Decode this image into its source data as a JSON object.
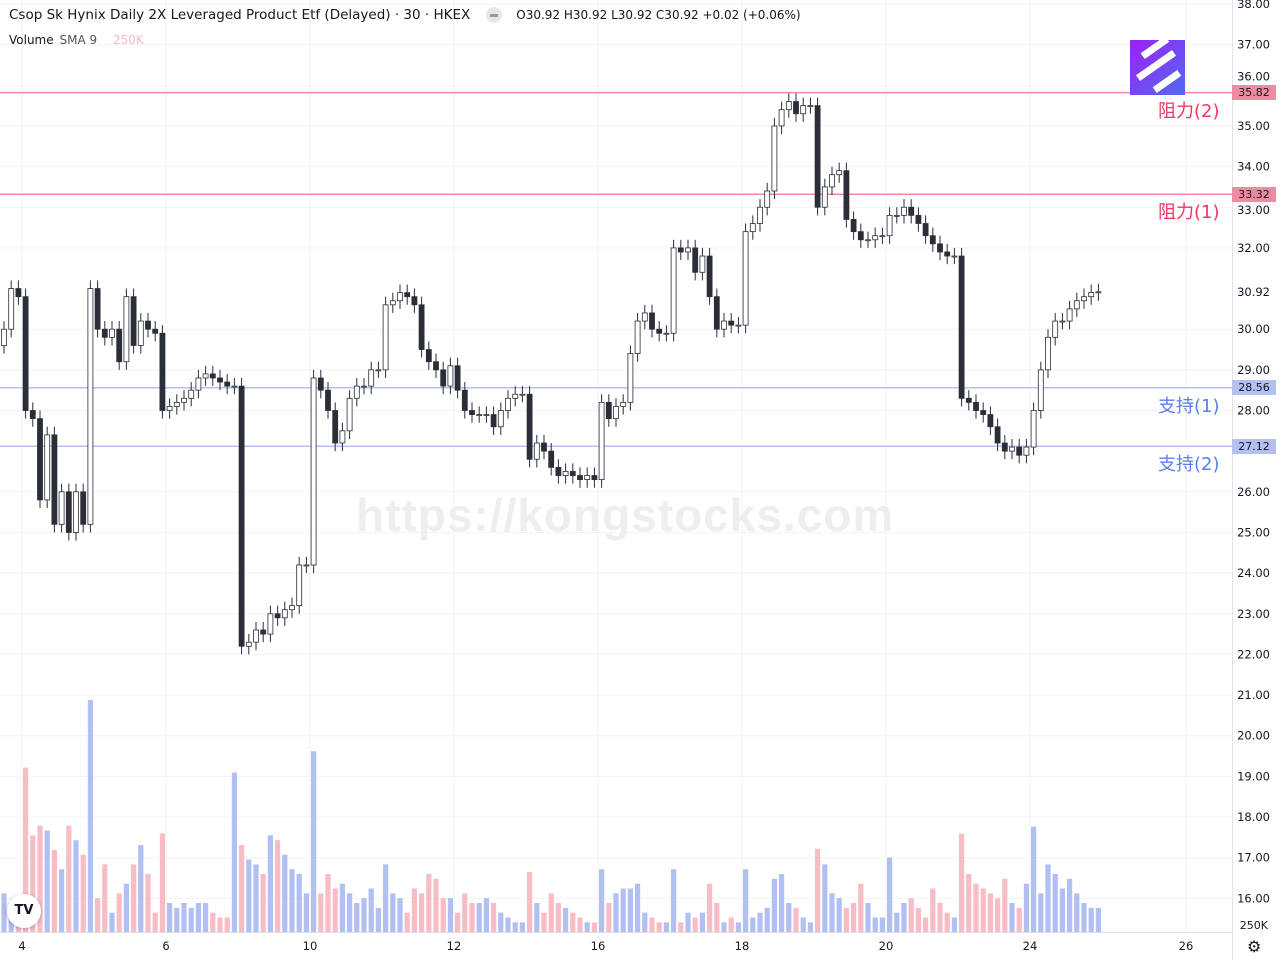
{
  "header": {
    "title": "Csop Sk Hynix Daily 2X Leveraged Product Etf (Delayed) · 30 · HKEX",
    "ohlc": "O30.92 H30.92 L30.92 C30.92 +0.02 (+0.06%)",
    "volume_label": "Volume",
    "volume_sma": "SMA 9",
    "volume_value": "250K"
  },
  "watermark": "https://kongstocks.com",
  "levels": [
    {
      "price": 35.82,
      "label": "35.82",
      "text": "阻力(2)",
      "color": "#f08aa0",
      "text_color": "#f23660"
    },
    {
      "price": 33.32,
      "label": "33.32",
      "text": "阻力(1)",
      "color": "#f08aa0",
      "text_color": "#f23660"
    },
    {
      "price": 28.56,
      "label": "28.56",
      "text": "支持(1)",
      "color": "#b4c0ee",
      "text_color": "#5b7ef0"
    },
    {
      "price": 27.12,
      "label": "27.12",
      "text": "支持(2)",
      "color": "#b4c0ee",
      "text_color": "#5b7ef0"
    }
  ],
  "tv_logo": "TV",
  "icons": {
    "settings": "gear-icon",
    "logo": "tradingview-logo"
  },
  "colors": {
    "up_volume": "#b2bff2",
    "down_volume": "#f7bcc4",
    "up_candle": "#ffffff",
    "down_candle": "#2a2e39",
    "last_price": "#e0e3eb"
  },
  "chart_data": {
    "type": "candlestick",
    "ylim": [
      15.5,
      38
    ],
    "y_ticks": [
      "38.00",
      "37.00",
      "36.00",
      "35.00",
      "34.00",
      "33.00",
      "32.00",
      "30.00",
      "29.00",
      "28.00",
      "26.00",
      "25.00",
      "24.00",
      "23.00",
      "22.00",
      "21.00",
      "20.00",
      "19.00",
      "18.00",
      "17.00",
      "16.00"
    ],
    "last_price": "30.92",
    "volume_axis_label": "250K",
    "x_ticks": [
      "4",
      "6",
      "10",
      "12",
      "16",
      "18",
      "20",
      "24",
      "26"
    ],
    "first_open": 29.6,
    "closes": [
      30.0,
      31.0,
      30.8,
      28.0,
      27.8,
      25.8,
      27.4,
      25.2,
      26.0,
      25.0,
      26.0,
      25.2,
      31.0,
      30.0,
      29.8,
      30.0,
      29.2,
      30.8,
      29.6,
      30.2,
      30.0,
      29.9,
      28.0,
      28.1,
      28.2,
      28.3,
      28.5,
      28.8,
      28.9,
      28.8,
      28.7,
      28.6,
      28.6,
      22.2,
      22.3,
      22.6,
      22.5,
      23.0,
      22.9,
      23.1,
      23.2,
      24.2,
      24.2,
      28.8,
      28.5,
      28.0,
      27.2,
      27.5,
      28.3,
      28.6,
      28.6,
      29.0,
      29.0,
      30.6,
      30.7,
      30.9,
      30.8,
      30.6,
      29.5,
      29.2,
      29.0,
      28.6,
      29.1,
      28.5,
      28.0,
      27.9,
      27.9,
      27.9,
      27.6,
      28.0,
      28.3,
      28.4,
      28.4,
      26.8,
      27.2,
      27.0,
      26.6,
      26.4,
      26.5,
      26.4,
      26.3,
      26.4,
      26.3,
      28.2,
      27.8,
      28.1,
      28.2,
      29.4,
      30.2,
      30.4,
      30.0,
      29.9,
      29.9,
      32.0,
      31.9,
      32.0,
      31.4,
      31.8,
      30.8,
      30.0,
      30.2,
      30.1,
      30.1,
      32.4,
      32.6,
      33.0,
      33.4,
      35.0,
      35.4,
      35.6,
      35.3,
      35.5,
      35.5,
      33.0,
      33.5,
      33.8,
      33.9,
      32.7,
      32.4,
      32.2,
      32.2,
      32.3,
      32.3,
      32.8,
      32.8,
      33.0,
      32.8,
      32.6,
      32.3,
      32.1,
      31.9,
      31.8,
      31.8,
      28.3,
      28.2,
      28.0,
      27.9,
      27.6,
      27.2,
      27.0,
      27.1,
      26.9,
      27.1,
      28.0,
      29.0,
      29.8,
      30.2,
      30.2,
      30.5,
      30.7,
      30.8,
      30.9,
      30.92
    ],
    "volumes_k": [
      400,
      300,
      180,
      1700,
      1000,
      1100,
      1050,
      850,
      650,
      1100,
      950,
      800,
      2400,
      350,
      700,
      200,
      400,
      500,
      700,
      900,
      600,
      200,
      1020,
      300,
      250,
      300,
      250,
      300,
      300,
      200,
      150,
      150,
      1650,
      900,
      750,
      700,
      600,
      1000,
      950,
      800,
      650,
      600,
      400,
      1870,
      400,
      600,
      450,
      500,
      400,
      300,
      350,
      450,
      250,
      700,
      400,
      350,
      200,
      450,
      400,
      600,
      550,
      350,
      350,
      200,
      400,
      300,
      300,
      350,
      300,
      200,
      150,
      100,
      100,
      620,
      300,
      200,
      400,
      300,
      250,
      200,
      150,
      100,
      100,
      650,
      300,
      400,
      450,
      450,
      500,
      200,
      150,
      100,
      100,
      650,
      100,
      200,
      150,
      200,
      500,
      300,
      100,
      150,
      100,
      650,
      150,
      200,
      250,
      550,
      600,
      300,
      250,
      150,
      100,
      860,
      700,
      400,
      350,
      250,
      300,
      500,
      300,
      150,
      150,
      770,
      200,
      300,
      350,
      250,
      150,
      450,
      300,
      200,
      150,
      1020,
      600,
      500,
      450,
      400,
      350,
      550,
      300,
      250,
      500,
      1090,
      400,
      700,
      600,
      450,
      550,
      400,
      300,
      250,
      250
    ]
  }
}
